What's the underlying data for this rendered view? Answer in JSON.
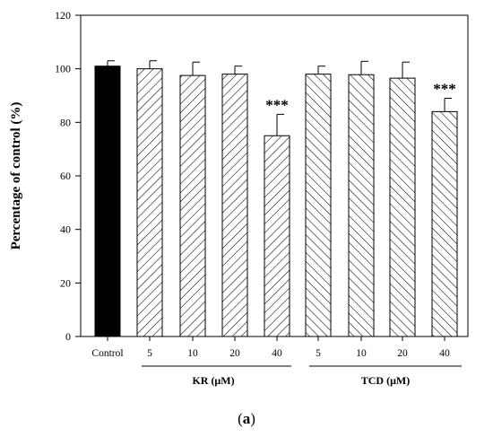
{
  "chart_data": {
    "type": "bar",
    "ylabel": "Percentage of control (%)",
    "xlabel": "",
    "ylim": [
      0,
      120
    ],
    "yticks": [
      "0",
      "20",
      "40",
      "60",
      "80",
      "100",
      "120"
    ],
    "grid": false,
    "categories": [
      "Control",
      "5",
      "10",
      "20",
      "40",
      "5",
      "10",
      "20",
      "40"
    ],
    "groups": [
      {
        "label": "KR (μM)",
        "members": [
          1,
          2,
          3,
          4
        ]
      },
      {
        "label": "TCD (μM)",
        "members": [
          5,
          6,
          7,
          8
        ]
      }
    ],
    "values": [
      101,
      100,
      97.5,
      98,
      75,
      98,
      97.8,
      96.5,
      84
    ],
    "errors": [
      2,
      3,
      5,
      3,
      8,
      3,
      5,
      6,
      5
    ],
    "fills": [
      "solid",
      "hatch-forward",
      "hatch-forward",
      "hatch-forward",
      "hatch-forward",
      "hatch-back",
      "hatch-back",
      "hatch-back",
      "hatch-back"
    ],
    "significance": [
      "",
      "",
      "",
      "",
      "***",
      "",
      "",
      "",
      "***"
    ],
    "colors": {
      "control_fill": "#000000",
      "bar_stroke": "#000000",
      "hatch": "#000000",
      "background": "#ffffff"
    }
  },
  "panel_label": {
    "open": "(",
    "letter": "a",
    "close": ")"
  }
}
